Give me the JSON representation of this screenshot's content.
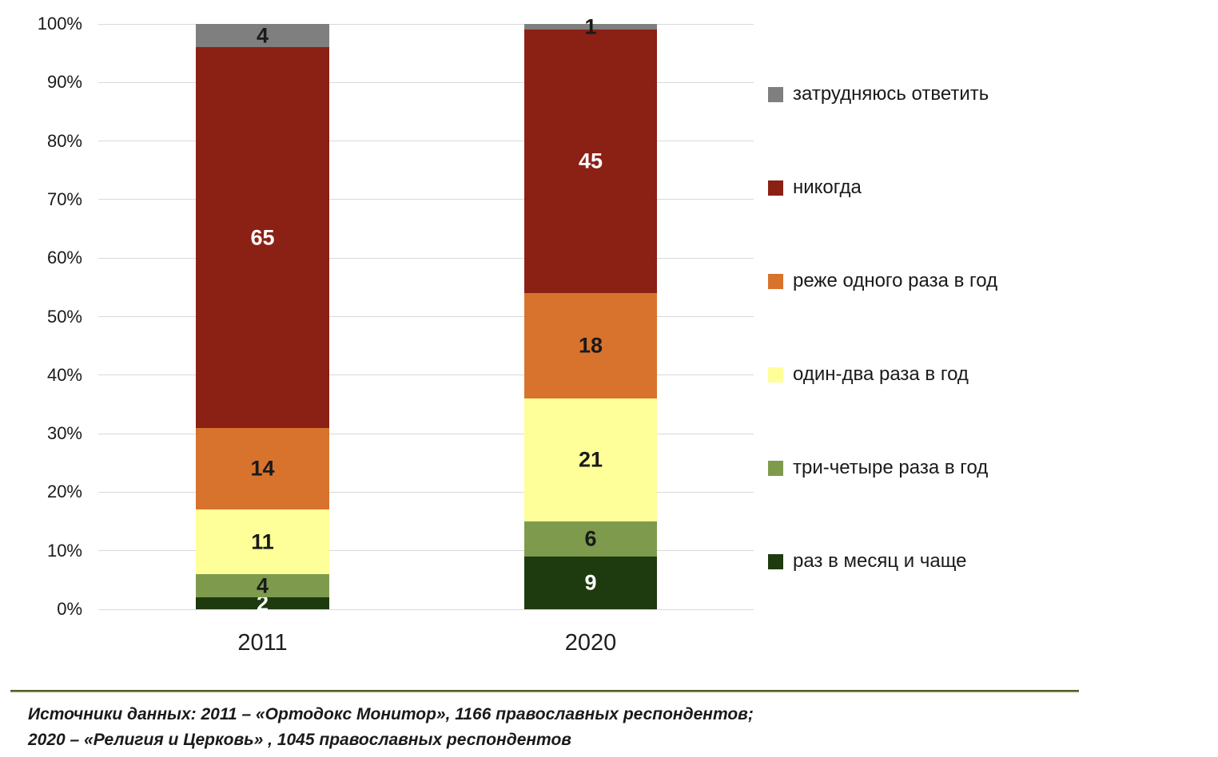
{
  "chart_data": {
    "type": "bar",
    "stacked": true,
    "title": "",
    "xlabel": "",
    "ylabel": "",
    "categories": [
      "2011",
      "2020"
    ],
    "series": [
      {
        "name": "раз в месяц и чаще",
        "color": "#1e3a0f",
        "label_color": "#ffffff",
        "values": [
          2,
          9
        ]
      },
      {
        "name": "три-четыре раза в год",
        "color": "#7e9b4d",
        "label_color": "#1a1a1a",
        "values": [
          4,
          6
        ]
      },
      {
        "name": "один-два раза в год",
        "color": "#ffff99",
        "label_color": "#1a1a1a",
        "values": [
          11,
          21
        ]
      },
      {
        "name": "реже одного раза в год",
        "color": "#d8732d",
        "label_color": "#1a1a1a",
        "values": [
          14,
          18
        ]
      },
      {
        "name": "никогда",
        "color": "#8b2015",
        "label_color": "#ffffff",
        "values": [
          65,
          45
        ]
      },
      {
        "name": "затрудняюсь ответить",
        "color": "#7f7f7f",
        "label_color": "#1a1a1a",
        "values": [
          4,
          1
        ]
      }
    ],
    "y_axis": {
      "min": 0,
      "max": 100,
      "ticks": [
        "0%",
        "10%",
        "20%",
        "30%",
        "40%",
        "50%",
        "60%",
        "70%",
        "80%",
        "90%",
        "100%"
      ],
      "grid": true,
      "gridline_color": "#d9d9d9"
    },
    "legend": {
      "position": "right",
      "order_top_to_bottom": [
        "затрудняюсь ответить",
        "никогда",
        "реже одного раза в год",
        "один-два раза в год",
        "три-четыре раза в год",
        "раз в месяц и чаще"
      ]
    }
  },
  "footer": {
    "line1": "Источники данных: 2011 – «Ортодокс Монитор», 1166 православных респондентов;",
    "line2": "2020 – «Религия и Церковь» , 1045 православных респондентов"
  }
}
